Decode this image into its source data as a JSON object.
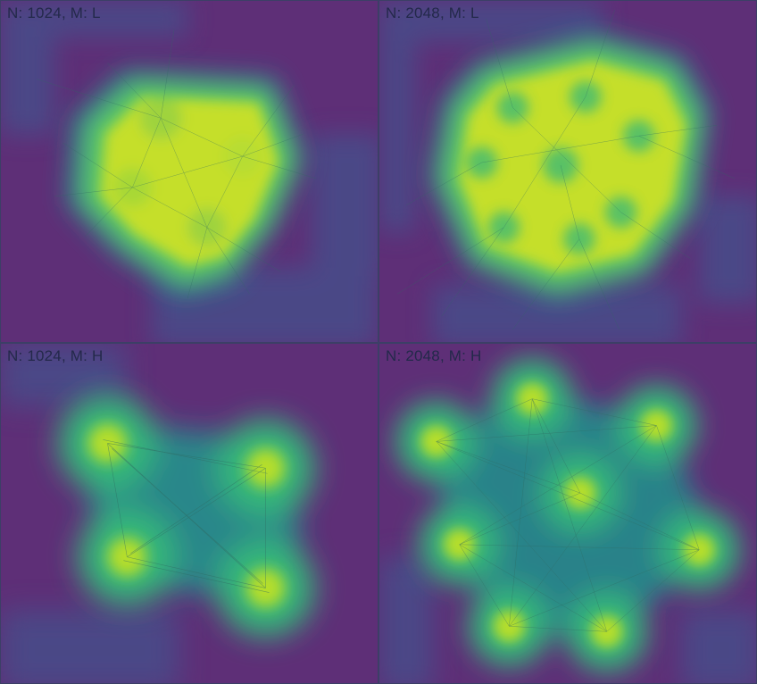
{
  "panels": [
    {
      "label": "N: 1024, M: L",
      "N": 1024,
      "M": "L",
      "layout": "merged blob",
      "clusters": 4
    },
    {
      "label": "N: 2048, M: L",
      "N": 2048,
      "M": "L",
      "layout": "merged blob",
      "clusters": 8
    },
    {
      "label": "N: 1024, M: H",
      "N": 1024,
      "M": "H",
      "layout": "separated clusters",
      "clusters": 4
    },
    {
      "label": "N: 2048, M: H",
      "N": 2048,
      "M": "H",
      "layout": "separated clusters",
      "clusters": 8
    }
  ],
  "colors": {
    "background": "#5e2f77",
    "halo": "#1f9e89",
    "mid": "#6ece58",
    "peak": "#d8e219",
    "edges": "#2f6b62",
    "label_text": "#23294a",
    "border": "#3c3f66"
  },
  "colormap": "viridis"
}
